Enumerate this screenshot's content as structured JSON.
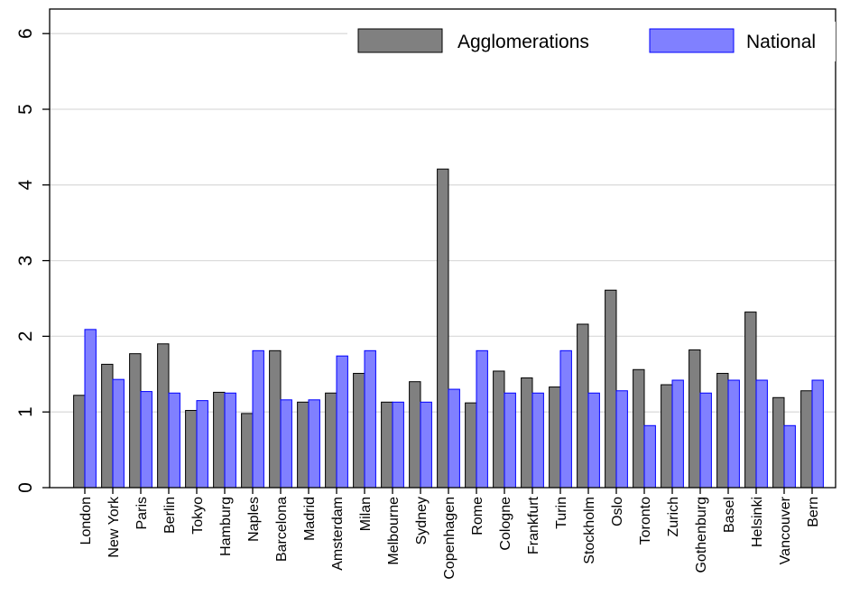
{
  "chart_data": {
    "type": "bar",
    "categories": [
      "London",
      "New York",
      "Paris",
      "Berlin",
      "Tokyo",
      "Hamburg",
      "Naples",
      "Barcelona",
      "Madrid",
      "Amsterdam",
      "Milan",
      "Melbourne",
      "Sydney",
      "Copenhagen",
      "Rome",
      "Cologne",
      "Frankfurt",
      "Turin",
      "Stockholm",
      "Oslo",
      "Toronto",
      "Zurich",
      "Gothenburg",
      "Basel",
      "Helsinki",
      "Vancouver",
      "Bern"
    ],
    "series": [
      {
        "name": "Agglomerations",
        "color": "#808080",
        "stroke": "#000000",
        "values": [
          1.22,
          1.63,
          1.77,
          1.9,
          1.02,
          1.26,
          0.98,
          1.81,
          1.13,
          1.25,
          1.51,
          1.13,
          1.4,
          4.21,
          1.12,
          1.54,
          1.45,
          1.33,
          2.16,
          2.61,
          1.56,
          1.36,
          1.82,
          1.51,
          2.32,
          1.19,
          1.28
        ]
      },
      {
        "name": "National",
        "color": "#8080ff",
        "stroke": "#0000ff",
        "values": [
          2.09,
          1.43,
          1.27,
          1.25,
          1.15,
          1.25,
          1.81,
          1.16,
          1.16,
          1.74,
          1.81,
          1.13,
          1.13,
          1.3,
          1.81,
          1.25,
          1.25,
          1.81,
          1.25,
          1.28,
          0.82,
          1.42,
          1.25,
          1.42,
          1.42,
          0.82,
          1.42
        ]
      }
    ],
    "yticks": [
      0,
      1,
      2,
      3,
      4,
      5,
      6
    ],
    "ylim": [
      0,
      6
    ],
    "grid": true,
    "legend_position": "top-right",
    "title": "",
    "xlabel": "",
    "ylabel": ""
  }
}
